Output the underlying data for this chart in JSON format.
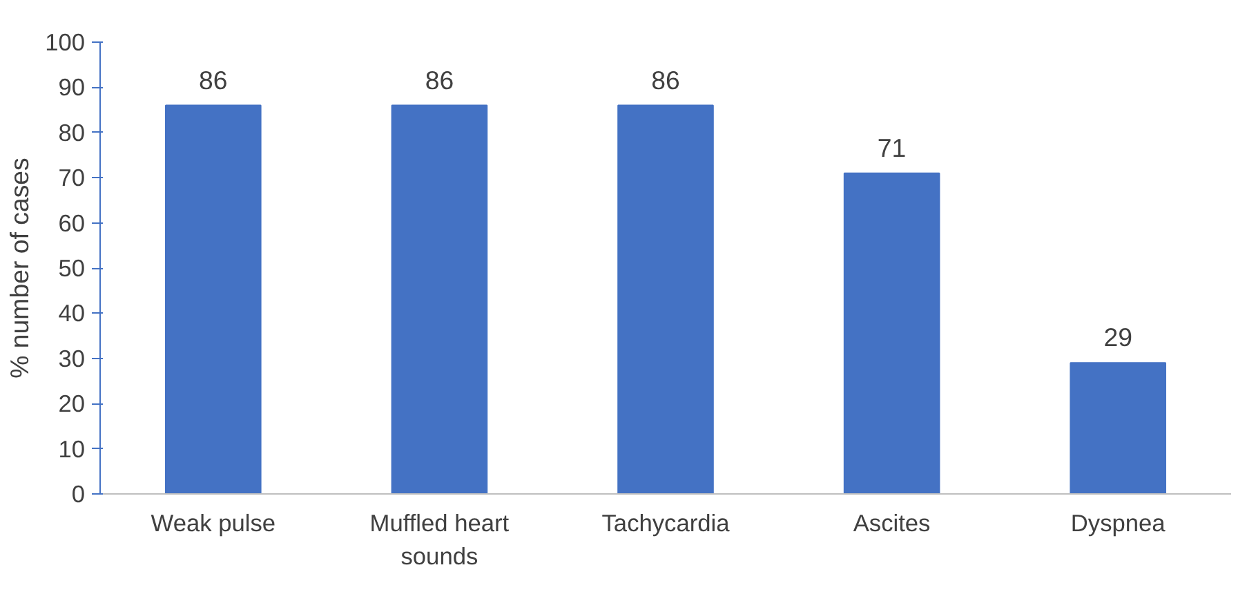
{
  "chart_data": {
    "type": "bar",
    "ylabel": "% number of cases",
    "categories": [
      "Weak pulse",
      "Muffled heart sounds",
      "Tachycardia",
      "Ascites",
      "Dyspnea"
    ],
    "values": [
      86,
      86,
      86,
      71,
      29
    ],
    "color": "#4472c4",
    "ylim": [
      0,
      100
    ],
    "yticks": [
      0,
      10,
      20,
      30,
      40,
      50,
      60,
      70,
      80,
      90,
      100
    ],
    "grid": false,
    "data_labels": true
  }
}
